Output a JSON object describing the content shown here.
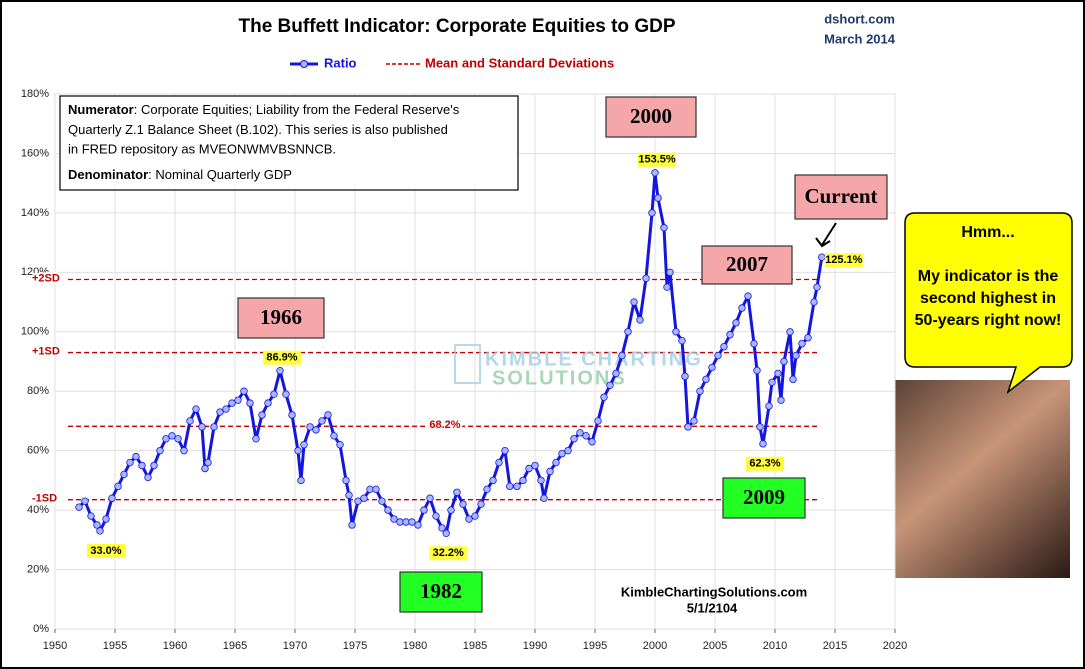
{
  "chart_data": {
    "type": "line",
    "title": "The Buffett Indicator: Corporate Equities to GDP",
    "source": "dshort.com",
    "date": "March 2014",
    "series": [
      {
        "name": "Ratio",
        "color": "#1515e0",
        "x": [
          1952.0,
          1952.5,
          1953.0,
          1953.5,
          1953.75,
          1954.25,
          1954.75,
          1955.25,
          1955.75,
          1956.25,
          1956.75,
          1957.25,
          1957.75,
          1958.25,
          1958.75,
          1959.25,
          1959.75,
          1960.25,
          1960.75,
          1961.25,
          1961.75,
          1962.25,
          1962.5,
          1962.75,
          1963.25,
          1963.75,
          1964.25,
          1964.75,
          1965.25,
          1965.75,
          1966.25,
          1966.75,
          1967.25,
          1967.75,
          1968.25,
          1968.75,
          1969.25,
          1969.75,
          1970.25,
          1970.5,
          1970.75,
          1971.25,
          1971.75,
          1972.25,
          1972.75,
          1973.25,
          1973.75,
          1974.25,
          1974.5,
          1974.75,
          1975.25,
          1975.75,
          1976.25,
          1976.75,
          1977.25,
          1977.75,
          1978.25,
          1978.75,
          1979.25,
          1979.75,
          1980.25,
          1980.75,
          1981.25,
          1981.75,
          1982.25,
          1982.6,
          1983.0,
          1983.5,
          1984.0,
          1984.5,
          1985.0,
          1985.5,
          1986.0,
          1986.5,
          1987.0,
          1987.5,
          1987.9,
          1988.5,
          1989.0,
          1989.5,
          1990.0,
          1990.5,
          1990.75,
          1991.25,
          1991.75,
          1992.25,
          1992.75,
          1993.25,
          1993.75,
          1994.25,
          1994.75,
          1995.25,
          1995.75,
          1996.25,
          1996.75,
          1997.25,
          1997.75,
          1998.25,
          1998.75,
          1999.25,
          1999.75,
          2000.0,
          2000.25,
          2000.75,
          2001.0,
          2001.25,
          2001.75,
          2002.25,
          2002.5,
          2002.75,
          2003.25,
          2003.75,
          2004.25,
          2004.75,
          2005.25,
          2005.75,
          2006.25,
          2006.75,
          2007.25,
          2007.75,
          2008.25,
          2008.5,
          2008.75,
          2009.0,
          2009.5,
          2009.75,
          2010.25,
          2010.5,
          2010.75,
          2011.25,
          2011.5,
          2011.75,
          2012.25,
          2012.75,
          2013.25,
          2013.5,
          2013.9
        ],
        "values": [
          41,
          43,
          38,
          35,
          33.0,
          37,
          44,
          48,
          52,
          56,
          58,
          55,
          51,
          55,
          60,
          64,
          65,
          64,
          60,
          70,
          74,
          68,
          54,
          56,
          68,
          73,
          74,
          76,
          77,
          80,
          76,
          64,
          72,
          76,
          79,
          86.9,
          79,
          72,
          60,
          50,
          62,
          68,
          67,
          70,
          72,
          65,
          62,
          50,
          45,
          35,
          43,
          44,
          47,
          47,
          43,
          40,
          37,
          36,
          36,
          36,
          35,
          40,
          44,
          38,
          34,
          32.2,
          40,
          46,
          42,
          37,
          38,
          42,
          47,
          50,
          56,
          60,
          48,
          48,
          50,
          54,
          55,
          50,
          44,
          53,
          56,
          59,
          60,
          64,
          66,
          65,
          63,
          70,
          78,
          82,
          86,
          92,
          100,
          110,
          104,
          118,
          140,
          153.5,
          145,
          135,
          115,
          120,
          100,
          97,
          85,
          68,
          70,
          80,
          84,
          88,
          92,
          95,
          99,
          103,
          108,
          112,
          96,
          87,
          68,
          62.3,
          75,
          83,
          86,
          77,
          90,
          100,
          84,
          92,
          96,
          98,
          110,
          115,
          125.1
        ],
        "value_labels": [
          null,
          null,
          null,
          null,
          "33.0%",
          null,
          null,
          null,
          null,
          null,
          null,
          null,
          null,
          null,
          null,
          null,
          null,
          null,
          null,
          null,
          null,
          null,
          null,
          null,
          null,
          null,
          null,
          null,
          null,
          null,
          null,
          null,
          null,
          null,
          null,
          "86.9%",
          null,
          null,
          null,
          null,
          null,
          null,
          null,
          null,
          null,
          null,
          null,
          null,
          null,
          null,
          null,
          null,
          null,
          null,
          null,
          null,
          null,
          null,
          null,
          null,
          null,
          null,
          null,
          null,
          null,
          "32.2%",
          null,
          null,
          null,
          null,
          null,
          null,
          null,
          null,
          null,
          null,
          null,
          null,
          null,
          null,
          null,
          null,
          null,
          null,
          null,
          null,
          null,
          null,
          null,
          null,
          null,
          null,
          null,
          null,
          null,
          null,
          null,
          null,
          null,
          null,
          null,
          "153.5%",
          null,
          null,
          null,
          null,
          null,
          null,
          null,
          null,
          null,
          null,
          null,
          null,
          null,
          null,
          null,
          null,
          null,
          null,
          null,
          null,
          null,
          "62.3%",
          null,
          null,
          null,
          null,
          null,
          null,
          null,
          null,
          null,
          null,
          null,
          null,
          "125.1%"
        ]
      }
    ],
    "reference_name": "Mean and Standard Deviations",
    "reference_color": "#c00000",
    "reference_lines": [
      {
        "value": 117.6,
        "label": "+2SD"
      },
      {
        "value": 93.0,
        "label": "+1SD"
      },
      {
        "value": 68.2,
        "label": "68.2%"
      },
      {
        "value": 43.5,
        "label": "-1SD"
      }
    ],
    "xlim": [
      1950,
      2020
    ],
    "xticks": [
      1950,
      1955,
      1960,
      1965,
      1970,
      1975,
      1980,
      1985,
      1990,
      1995,
      2000,
      2005,
      2010,
      2015,
      2020
    ],
    "ylim": [
      0,
      180
    ],
    "yticks": [
      {
        "value": 0,
        "label": "0%"
      },
      {
        "value": 20,
        "label": "20%"
      },
      {
        "value": 40,
        "label": "40%"
      },
      {
        "value": 60,
        "label": "60%"
      },
      {
        "value": 80,
        "label": "80%"
      },
      {
        "value": 100,
        "label": "100%"
      },
      {
        "value": 120,
        "label": "120%"
      },
      {
        "value": 140,
        "label": "140%"
      },
      {
        "value": 160,
        "label": "160%"
      },
      {
        "value": 180,
        "label": "180%"
      }
    ],
    "grid": true,
    "annotations": [
      "1966",
      "2000",
      "2007",
      "Current",
      "1982",
      "2009"
    ],
    "note": {
      "numerator_label": "Numerator",
      "numerator_lines": [
        ": Corporate Equities; Liability from the Federal Reserve's",
        "Quarterly Z.1 Balance Sheet (B.102). This series is also published",
        "in FRED repository  as MVEONWMVBSNNCB."
      ],
      "denominator_label": "Denominator",
      "denominator_text": ": Nominal Quarterly GDP"
    },
    "watermark": [
      "KIMBLE CHARTING",
      "SOLUTIONS"
    ],
    "credit": [
      "KimbleChartingSolutions.com",
      "5/1/2104"
    ],
    "speech": [
      "Hmm...",
      "My indicator is the",
      "second highest in",
      "50-years right now!"
    ]
  }
}
